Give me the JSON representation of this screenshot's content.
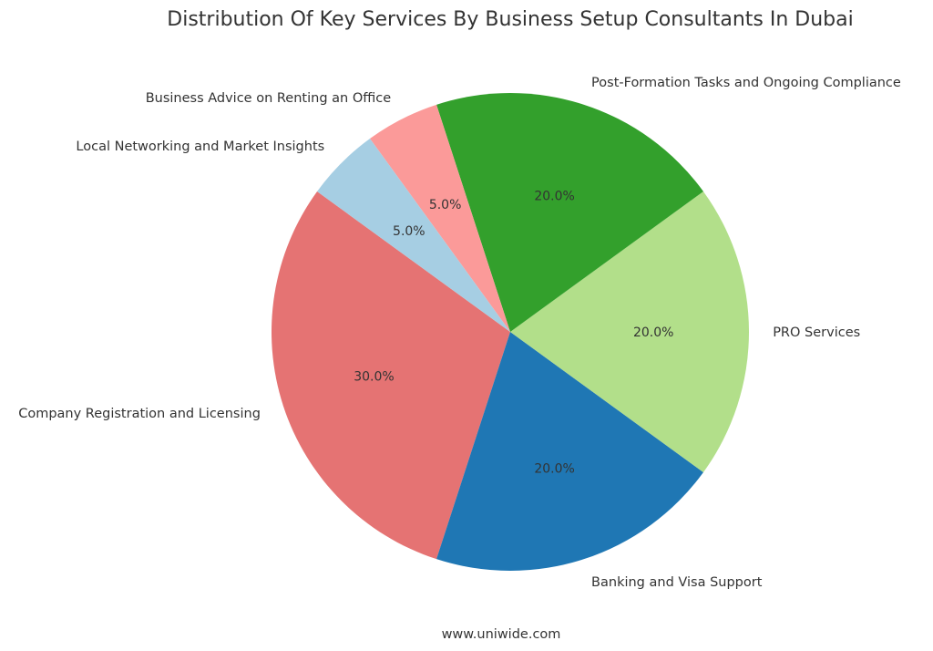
{
  "chart_data": {
    "type": "pie",
    "title": "Distribution Of Key Services By Business Setup Consultants In Dubai",
    "slices": [
      {
        "label": "Company Registration and Licensing",
        "value": 30.0,
        "pct_label": "30.0%",
        "color": "#e57373"
      },
      {
        "label": "Banking and Visa Support",
        "value": 20.0,
        "pct_label": "20.0%",
        "color": "#1f77b4"
      },
      {
        "label": "PRO Services",
        "value": 20.0,
        "pct_label": "20.0%",
        "color": "#b2df8a"
      },
      {
        "label": "Post-Formation Tasks and Ongoing Compliance",
        "value": 20.0,
        "pct_label": "20.0%",
        "color": "#33a02c"
      },
      {
        "label": "Business Advice on Renting an Office",
        "value": 5.0,
        "pct_label": "5.0%",
        "color": "#fb9a99"
      },
      {
        "label": "Local Networking and Market Insights",
        "value": 5.0,
        "pct_label": "5.0%",
        "color": "#a6cee3"
      }
    ],
    "source": "www.uniwide.com"
  }
}
